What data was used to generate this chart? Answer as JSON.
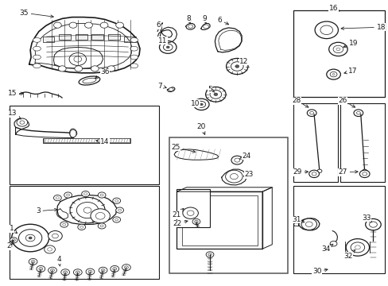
{
  "bg": "#ffffff",
  "lc": "#1a1a1a",
  "fig_w": 4.89,
  "fig_h": 3.6,
  "dpi": 100,
  "boxes": {
    "parts_13_14": [
      0.025,
      0.355,
      0.385,
      0.275
    ],
    "parts_3_4": [
      0.025,
      0.025,
      0.385,
      0.325
    ],
    "parts_20": [
      0.435,
      0.045,
      0.305,
      0.475
    ],
    "parts_16": [
      0.755,
      0.66,
      0.235,
      0.305
    ],
    "parts_28": [
      0.755,
      0.365,
      0.115,
      0.275
    ],
    "parts_26": [
      0.875,
      0.365,
      0.115,
      0.275
    ],
    "parts_30": [
      0.755,
      0.045,
      0.235,
      0.305
    ],
    "parts_21": [
      0.455,
      0.205,
      0.085,
      0.135
    ]
  }
}
